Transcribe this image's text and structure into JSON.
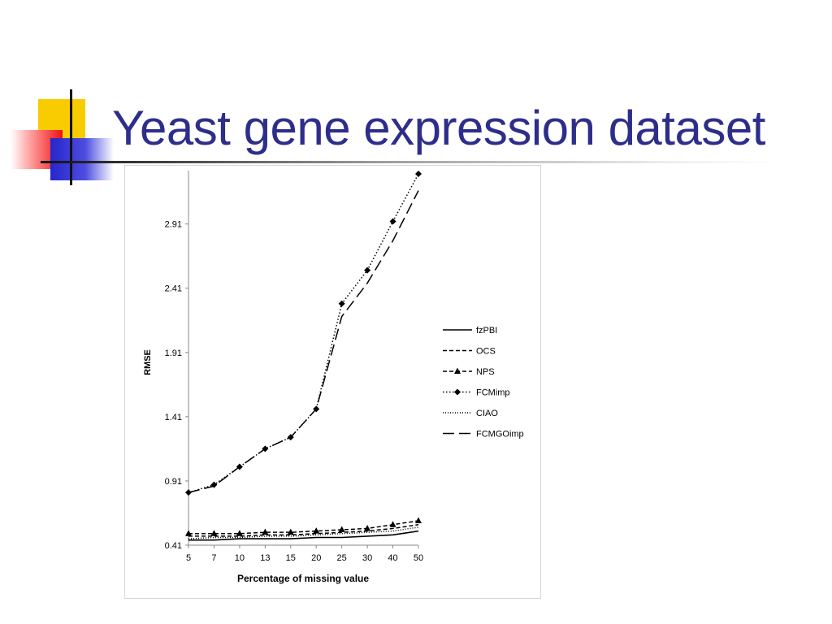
{
  "slide": {
    "title": "Yeast gene expression dataset"
  },
  "chart_data": {
    "type": "line",
    "title": "",
    "xlabel": "Percentage of missing value",
    "ylabel": "RMSE",
    "categories": [
      "5",
      "7",
      "10",
      "13",
      "15",
      "20",
      "25",
      "30",
      "40",
      "50"
    ],
    "y_ticks": [
      "0.41",
      "0.91",
      "1.41",
      "1.91",
      "2.41",
      "2.91"
    ],
    "ylim": [
      0.41,
      3.3
    ],
    "grid": false,
    "legend_position": "right",
    "series": [
      {
        "name": "fzPBI",
        "style": "solid",
        "marker": "none",
        "values": [
          0.45,
          0.45,
          0.46,
          0.46,
          0.46,
          0.47,
          0.47,
          0.48,
          0.49,
          0.52
        ]
      },
      {
        "name": "OCS",
        "style": "dashed",
        "marker": "none",
        "values": [
          0.48,
          0.48,
          0.48,
          0.49,
          0.49,
          0.5,
          0.51,
          0.52,
          0.54,
          0.57
        ]
      },
      {
        "name": "NPS",
        "style": "dashed",
        "marker": "triangle",
        "values": [
          0.5,
          0.5,
          0.5,
          0.51,
          0.51,
          0.52,
          0.53,
          0.54,
          0.57,
          0.6
        ]
      },
      {
        "name": "FCMimp",
        "style": "dotted",
        "marker": "diamond",
        "values": [
          0.82,
          0.88,
          1.02,
          1.16,
          1.25,
          1.47,
          2.29,
          2.55,
          2.93,
          3.3
        ]
      },
      {
        "name": "CIAO",
        "style": "fine-dotted",
        "marker": "none",
        "values": [
          0.46,
          0.47,
          0.47,
          0.48,
          0.48,
          0.49,
          0.5,
          0.51,
          0.52,
          0.55
        ]
      },
      {
        "name": "FCMGOimp",
        "style": "long-dash",
        "marker": "none",
        "values": [
          0.82,
          0.87,
          1.02,
          1.16,
          1.25,
          1.47,
          2.19,
          2.45,
          2.78,
          3.17
        ]
      }
    ]
  }
}
